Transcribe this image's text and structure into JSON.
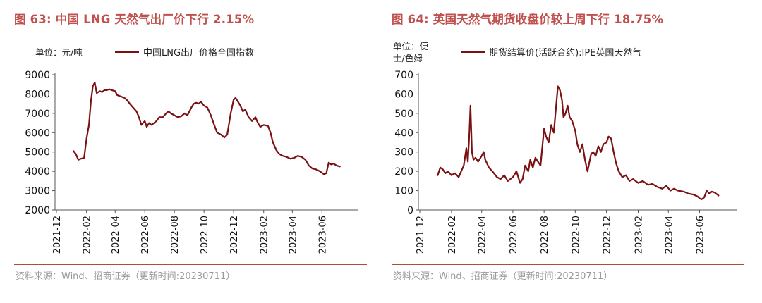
{
  "panels": [
    {
      "title": "图 63:  中国 LNG 天然气出厂价下行 2.15%",
      "source": "资料来源：Wind、招商证券（更新时间:20230711）",
      "chart_data": {
        "type": "line",
        "unit": "单位：元/吨",
        "ylim": [
          2000,
          9000
        ],
        "yticks": [
          2000,
          3000,
          4000,
          5000,
          6000,
          7000,
          8000,
          9000
        ],
        "xticks": [
          "2021-12",
          "2022-02",
          "2022-04",
          "2022-06",
          "2022-08",
          "2022-10",
          "2022-12",
          "2023-02",
          "2023-04",
          "2023-06"
        ],
        "xlim": [
          "2021-12-01",
          "2023-07-20"
        ],
        "grid": false,
        "legend": "top",
        "series": [
          {
            "name": "中国LNG出厂价格全国指数",
            "color": "#7b1113",
            "points": [
              [
                "2022-01-05",
                5050
              ],
              [
                "2022-01-10",
                4900
              ],
              [
                "2022-01-15",
                4600
              ],
              [
                "2022-01-20",
                4650
              ],
              [
                "2022-01-27",
                4700
              ],
              [
                "2022-02-01",
                5700
              ],
              [
                "2022-02-06",
                6400
              ],
              [
                "2022-02-10",
                7600
              ],
              [
                "2022-02-14",
                8400
              ],
              [
                "2022-02-18",
                8600
              ],
              [
                "2022-02-22",
                8050
              ],
              [
                "2022-03-01",
                8150
              ],
              [
                "2022-03-05",
                8100
              ],
              [
                "2022-03-10",
                8200
              ],
              [
                "2022-03-15",
                8200
              ],
              [
                "2022-03-20",
                8250
              ],
              [
                "2022-03-25",
                8200
              ],
              [
                "2022-04-01",
                8150
              ],
              [
                "2022-04-05",
                7950
              ],
              [
                "2022-04-10",
                7900
              ],
              [
                "2022-04-15",
                7850
              ],
              [
                "2022-04-20",
                7800
              ],
              [
                "2022-04-25",
                7700
              ],
              [
                "2022-05-01",
                7500
              ],
              [
                "2022-05-08",
                7300
              ],
              [
                "2022-05-15",
                7100
              ],
              [
                "2022-05-20",
                6800
              ],
              [
                "2022-05-25",
                6400
              ],
              [
                "2022-06-01",
                6600
              ],
              [
                "2022-06-05",
                6300
              ],
              [
                "2022-06-10",
                6500
              ],
              [
                "2022-06-15",
                6400
              ],
              [
                "2022-06-20",
                6500
              ],
              [
                "2022-06-25",
                6600
              ],
              [
                "2022-07-01",
                6800
              ],
              [
                "2022-07-08",
                6800
              ],
              [
                "2022-07-15",
                7000
              ],
              [
                "2022-07-20",
                7100
              ],
              [
                "2022-07-25",
                7000
              ],
              [
                "2022-08-01",
                6900
              ],
              [
                "2022-08-08",
                6800
              ],
              [
                "2022-08-15",
                6850
              ],
              [
                "2022-08-22",
                7000
              ],
              [
                "2022-08-28",
                6900
              ],
              [
                "2022-09-05",
                7300
              ],
              [
                "2022-09-10",
                7500
              ],
              [
                "2022-09-15",
                7550
              ],
              [
                "2022-09-20",
                7500
              ],
              [
                "2022-09-25",
                7600
              ],
              [
                "2022-10-01",
                7400
              ],
              [
                "2022-10-08",
                7300
              ],
              [
                "2022-10-15",
                6900
              ],
              [
                "2022-10-22",
                6400
              ],
              [
                "2022-10-28",
                6000
              ],
              [
                "2022-11-05",
                5900
              ],
              [
                "2022-11-12",
                5750
              ],
              [
                "2022-11-18",
                5900
              ],
              [
                "2022-11-25",
                7000
              ],
              [
                "2022-12-01",
                7700
              ],
              [
                "2022-12-05",
                7800
              ],
              [
                "2022-12-10",
                7600
              ],
              [
                "2022-12-15",
                7400
              ],
              [
                "2022-12-20",
                7100
              ],
              [
                "2022-12-25",
                7200
              ],
              [
                "2023-01-01",
                6800
              ],
              [
                "2023-01-08",
                6600
              ],
              [
                "2023-01-15",
                6800
              ],
              [
                "2023-01-20",
                6500
              ],
              [
                "2023-01-25",
                6300
              ],
              [
                "2023-02-01",
                6400
              ],
              [
                "2023-02-10",
                6350
              ],
              [
                "2023-02-15",
                6000
              ],
              [
                "2023-02-20",
                5500
              ],
              [
                "2023-02-27",
                5100
              ],
              [
                "2023-03-05",
                4900
              ],
              [
                "2023-03-12",
                4800
              ],
              [
                "2023-03-20",
                4750
              ],
              [
                "2023-03-28",
                4650
              ],
              [
                "2023-04-05",
                4700
              ],
              [
                "2023-04-12",
                4800
              ],
              [
                "2023-04-20",
                4750
              ],
              [
                "2023-04-28",
                4600
              ],
              [
                "2023-05-05",
                4300
              ],
              [
                "2023-05-12",
                4150
              ],
              [
                "2023-05-20",
                4100
              ],
              [
                "2023-05-28",
                4000
              ],
              [
                "2023-06-05",
                3850
              ],
              [
                "2023-06-10",
                3900
              ],
              [
                "2023-06-15",
                4450
              ],
              [
                "2023-06-20",
                4350
              ],
              [
                "2023-06-25",
                4400
              ],
              [
                "2023-07-01",
                4300
              ],
              [
                "2023-07-08",
                4250
              ]
            ]
          }
        ]
      }
    },
    {
      "title": "图 64:  英国天然气期货收盘价较上周下行 18.75%",
      "source": "资料来源：Wind、招商证券（更新时间:20230711）",
      "chart_data": {
        "type": "line",
        "unit": "单位：便士/色姆",
        "ylim": [
          0,
          700
        ],
        "yticks": [
          0,
          100,
          200,
          300,
          400,
          500,
          600,
          700
        ],
        "xticks": [
          "2021-12",
          "2022-02",
          "2022-04",
          "2022-06",
          "2022-08",
          "2022-10",
          "2022-12",
          "2023-02",
          "2023-04",
          "2023-06"
        ],
        "xlim": [
          "2021-12-01",
          "2023-07-20"
        ],
        "grid": false,
        "legend": "top",
        "series": [
          {
            "name": "期货结算价(活跃合约):IPE英国天然气",
            "color": "#7b1113",
            "points": [
              [
                "2022-01-05",
                180
              ],
              [
                "2022-01-10",
                220
              ],
              [
                "2022-01-15",
                210
              ],
              [
                "2022-01-20",
                190
              ],
              [
                "2022-01-25",
                200
              ],
              [
                "2022-02-01",
                180
              ],
              [
                "2022-02-08",
                190
              ],
              [
                "2022-02-15",
                170
              ],
              [
                "2022-02-20",
                200
              ],
              [
                "2022-02-25",
                230
              ],
              [
                "2022-03-02",
                320
              ],
              [
                "2022-03-05",
                250
              ],
              [
                "2022-03-08",
                400
              ],
              [
                "2022-03-10",
                540
              ],
              [
                "2022-03-13",
                300
              ],
              [
                "2022-03-16",
                260
              ],
              [
                "2022-03-20",
                270
              ],
              [
                "2022-03-25",
                250
              ],
              [
                "2022-04-01",
                280
              ],
              [
                "2022-04-05",
                300
              ],
              [
                "2022-04-08",
                260
              ],
              [
                "2022-04-15",
                220
              ],
              [
                "2022-04-22",
                200
              ],
              [
                "2022-05-01",
                170
              ],
              [
                "2022-05-08",
                160
              ],
              [
                "2022-05-15",
                180
              ],
              [
                "2022-05-22",
                150
              ],
              [
                "2022-06-01",
                170
              ],
              [
                "2022-06-08",
                200
              ],
              [
                "2022-06-15",
                140
              ],
              [
                "2022-06-20",
                160
              ],
              [
                "2022-06-25",
                230
              ],
              [
                "2022-07-01",
                200
              ],
              [
                "2022-07-05",
                260
              ],
              [
                "2022-07-10",
                220
              ],
              [
                "2022-07-15",
                270
              ],
              [
                "2022-07-20",
                250
              ],
              [
                "2022-07-25",
                230
              ],
              [
                "2022-08-01",
                420
              ],
              [
                "2022-08-05",
                380
              ],
              [
                "2022-08-10",
                350
              ],
              [
                "2022-08-15",
                440
              ],
              [
                "2022-08-20",
                400
              ],
              [
                "2022-08-25",
                550
              ],
              [
                "2022-08-28",
                640
              ],
              [
                "2022-09-01",
                620
              ],
              [
                "2022-09-05",
                570
              ],
              [
                "2022-09-08",
                480
              ],
              [
                "2022-09-12",
                500
              ],
              [
                "2022-09-16",
                540
              ],
              [
                "2022-09-20",
                480
              ],
              [
                "2022-09-25",
                460
              ],
              [
                "2022-10-01",
                410
              ],
              [
                "2022-10-05",
                340
              ],
              [
                "2022-10-10",
                300
              ],
              [
                "2022-10-15",
                340
              ],
              [
                "2022-10-20",
                260
              ],
              [
                "2022-10-25",
                200
              ],
              [
                "2022-11-01",
                290
              ],
              [
                "2022-11-05",
                300
              ],
              [
                "2022-11-10",
                280
              ],
              [
                "2022-11-15",
                330
              ],
              [
                "2022-11-20",
                300
              ],
              [
                "2022-11-25",
                340
              ],
              [
                "2022-12-01",
                350
              ],
              [
                "2022-12-05",
                380
              ],
              [
                "2022-12-10",
                370
              ],
              [
                "2022-12-15",
                300
              ],
              [
                "2022-12-20",
                240
              ],
              [
                "2022-12-25",
                200
              ],
              [
                "2023-01-01",
                170
              ],
              [
                "2023-01-08",
                180
              ],
              [
                "2023-01-15",
                150
              ],
              [
                "2023-01-22",
                160
              ],
              [
                "2023-02-01",
                140
              ],
              [
                "2023-02-10",
                150
              ],
              [
                "2023-02-20",
                130
              ],
              [
                "2023-03-01",
                135
              ],
              [
                "2023-03-10",
                120
              ],
              [
                "2023-03-20",
                110
              ],
              [
                "2023-03-28",
                125
              ],
              [
                "2023-04-05",
                100
              ],
              [
                "2023-04-12",
                110
              ],
              [
                "2023-04-20",
                100
              ],
              [
                "2023-05-01",
                95
              ],
              [
                "2023-05-10",
                85
              ],
              [
                "2023-05-20",
                80
              ],
              [
                "2023-05-28",
                70
              ],
              [
                "2023-06-01",
                60
              ],
              [
                "2023-06-05",
                55
              ],
              [
                "2023-06-10",
                65
              ],
              [
                "2023-06-15",
                100
              ],
              [
                "2023-06-20",
                85
              ],
              [
                "2023-06-25",
                95
              ],
              [
                "2023-07-01",
                90
              ],
              [
                "2023-07-08",
                75
              ]
            ]
          }
        ]
      }
    }
  ]
}
